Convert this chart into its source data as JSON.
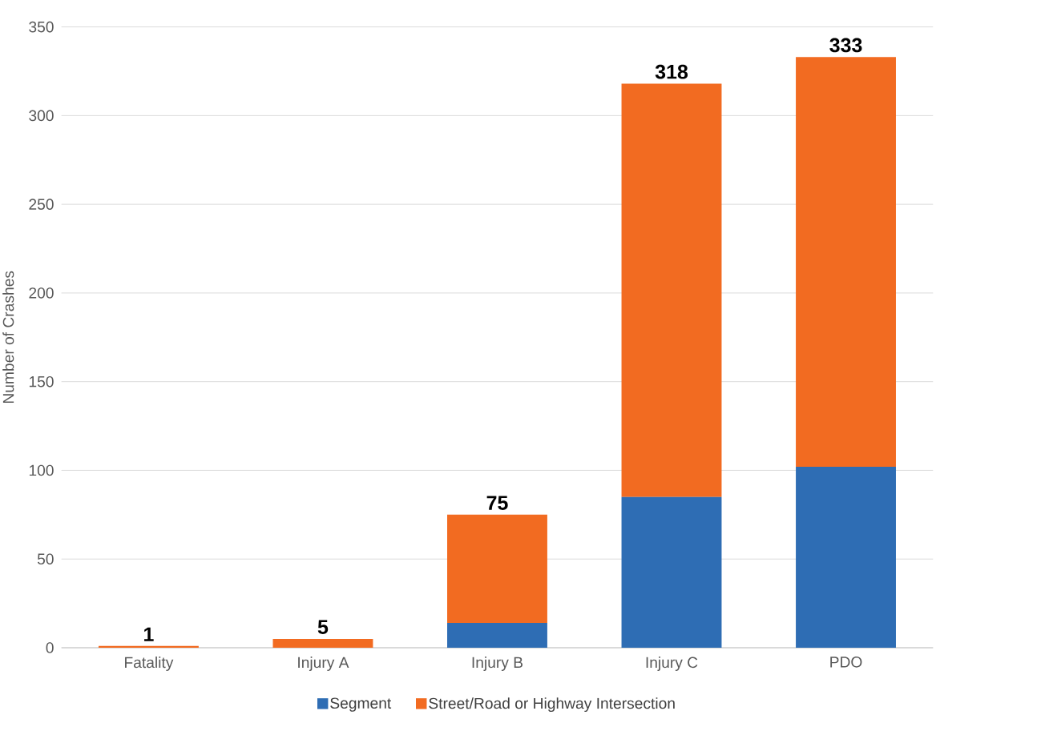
{
  "chart_data": {
    "type": "bar",
    "stacked": true,
    "ylabel": "Number of Crashes",
    "categories": [
      "Fatality",
      "Injury A",
      "Injury B",
      "Injury C",
      "PDO"
    ],
    "series": [
      {
        "name": "Segment",
        "color": "#2e6db4",
        "values": [
          0,
          0,
          14,
          85,
          102
        ]
      },
      {
        "name": "Street/Road or Highway Intersection",
        "color": "#f26b21",
        "values": [
          1,
          5,
          61,
          233,
          231
        ]
      }
    ],
    "totals": [
      "1",
      "5",
      "75",
      "318",
      "333"
    ],
    "ylim": [
      0,
      350
    ],
    "yticks": [
      0,
      50,
      100,
      150,
      200,
      250,
      300,
      350
    ],
    "grid": "y",
    "legend": "bottom"
  }
}
